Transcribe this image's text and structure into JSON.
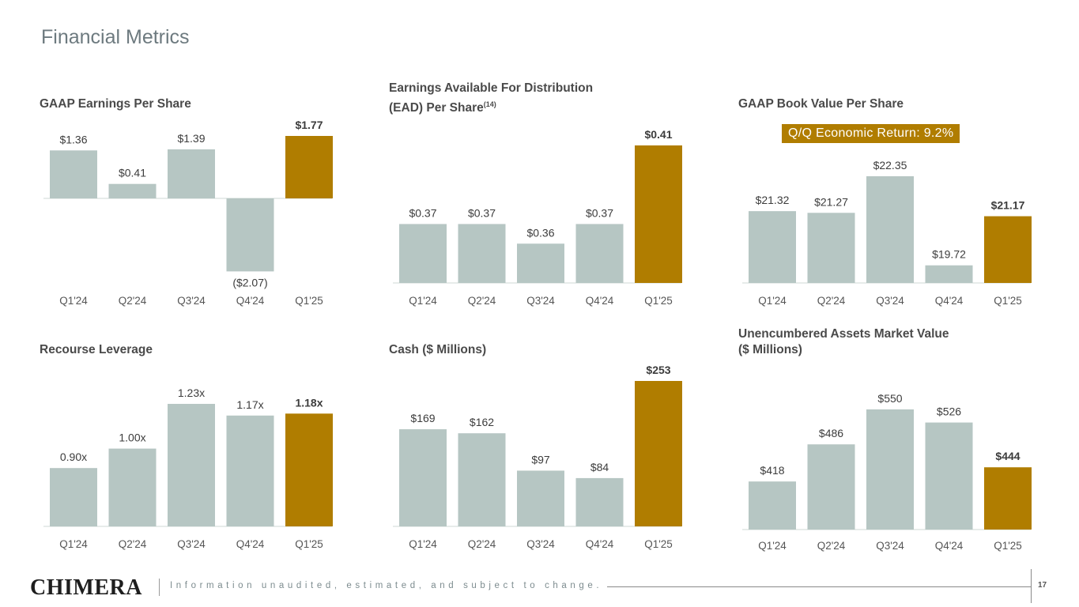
{
  "page": {
    "title": "Financial Metrics",
    "footer_logo": "CHIMERA",
    "footer_note": "Information unaudited, estimated, and subject to change.",
    "page_number": "17",
    "colors": {
      "bar": "#b6c6c3",
      "highlight": "#b07d00",
      "axis": "#dfe5e4",
      "label": "#3c3c3c",
      "axis_label": "#555555"
    }
  },
  "panels": {
    "gaap_eps": {
      "title": "GAAP Earnings Per Share"
    },
    "ead": {
      "title_line1": "Earnings Available For Distribution",
      "title_line2": "(EAD) Per Share",
      "title_sup": "(14)"
    },
    "bvps": {
      "title": "GAAP Book Value Per Share",
      "badge": "Q/Q Economic Return: 9.2%"
    },
    "leverage": {
      "title": "Recourse Leverage"
    },
    "cash": {
      "title": "Cash ($ Millions)"
    },
    "unencumbered": {
      "title_line1": "Unencumbered Assets Market Value",
      "title_line2": "($ Millions)"
    }
  },
  "chart_data": [
    {
      "id": "gaap_eps",
      "type": "bar",
      "title": "GAAP Earnings Per Share",
      "categories": [
        "Q1'24",
        "Q2'24",
        "Q3'24",
        "Q4'24",
        "Q1'25"
      ],
      "values": [
        1.36,
        0.41,
        1.39,
        -2.07,
        1.77
      ],
      "labels": [
        "$1.36",
        "$0.41",
        "$1.39",
        "($2.07)",
        "$1.77"
      ],
      "highlight_index": 4,
      "ylim": [
        -2.07,
        1.77
      ]
    },
    {
      "id": "ead",
      "type": "bar",
      "title": "Earnings Available For Distribution (EAD) Per Share",
      "categories": [
        "Q1'24",
        "Q2'24",
        "Q3'24",
        "Q4'24",
        "Q1'25"
      ],
      "values": [
        0.37,
        0.37,
        0.36,
        0.37,
        0.41
      ],
      "labels": [
        "$0.37",
        "$0.37",
        "$0.36",
        "$0.37",
        "$0.41"
      ],
      "highlight_index": 4,
      "ylim": [
        0.34,
        0.41
      ]
    },
    {
      "id": "bvps",
      "type": "bar",
      "title": "GAAP Book Value Per Share",
      "categories": [
        "Q1'24",
        "Q2'24",
        "Q3'24",
        "Q4'24",
        "Q1'25"
      ],
      "values": [
        21.32,
        21.27,
        22.35,
        19.72,
        21.17
      ],
      "labels": [
        "$21.32",
        "$21.27",
        "$22.35",
        "$19.72",
        "$21.17"
      ],
      "highlight_index": 4,
      "ylim": [
        19.2,
        22.35
      ]
    },
    {
      "id": "leverage",
      "type": "bar",
      "title": "Recourse Leverage",
      "categories": [
        "Q1'24",
        "Q2'24",
        "Q3'24",
        "Q4'24",
        "Q1'25"
      ],
      "values": [
        0.9,
        1.0,
        1.23,
        1.17,
        1.18
      ],
      "labels": [
        "0.90x",
        "1.00x",
        "1.23x",
        "1.17x",
        "1.18x"
      ],
      "highlight_index": 4,
      "ylim": [
        0.6,
        1.23
      ]
    },
    {
      "id": "cash",
      "type": "bar",
      "title": "Cash ($ Millions)",
      "categories": [
        "Q1'24",
        "Q2'24",
        "Q3'24",
        "Q4'24",
        "Q1'25"
      ],
      "values": [
        169,
        162,
        97,
        84,
        253
      ],
      "labels": [
        "$169",
        "$162",
        "$97",
        "$84",
        "$253"
      ],
      "highlight_index": 4,
      "ylim": [
        0,
        253
      ]
    },
    {
      "id": "unencumbered",
      "type": "bar",
      "title": "Unencumbered Assets Market Value ($ Millions)",
      "categories": [
        "Q1'24",
        "Q2'24",
        "Q3'24",
        "Q4'24",
        "Q1'25"
      ],
      "values": [
        418,
        486,
        550,
        526,
        444
      ],
      "labels": [
        "$418",
        "$486",
        "$550",
        "$526",
        "$444"
      ],
      "highlight_index": 4,
      "ylim": [
        330,
        550
      ]
    }
  ]
}
